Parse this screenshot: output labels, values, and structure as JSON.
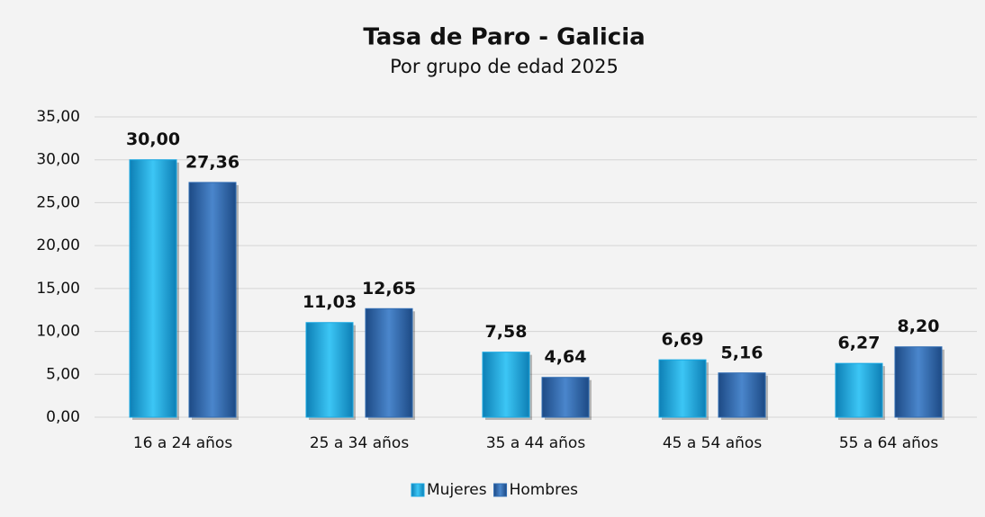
{
  "chart_data": {
    "type": "bar",
    "title": "Tasa de Paro - Galicia",
    "subtitle": "Por grupo de edad 2025",
    "categories": [
      "16 a 24 años",
      "25 a 34 años",
      "35 a 44 años",
      "45 a 54 años",
      "55 a 64 años"
    ],
    "series": [
      {
        "name": "Mujeres",
        "color": "#19a9e3",
        "values": [
          30,
          11.03,
          7.58,
          6.69,
          6.27
        ],
        "value_labels": [
          "30,00",
          "11,03",
          "7,58",
          "6,69",
          "6,27"
        ]
      },
      {
        "name": "Hombres",
        "color": "#2f6cb3",
        "values": [
          27.36,
          12.65,
          4.64,
          5.16,
          8.2
        ],
        "value_labels": [
          "27,36",
          "12,65",
          "4,64",
          "5,16",
          "8,20"
        ]
      }
    ],
    "ylim": [
      0,
      35
    ],
    "yticks": [
      {
        "value": 0,
        "label": "0,00"
      },
      {
        "value": 5,
        "label": "5,00"
      },
      {
        "value": 10,
        "label": "10,00"
      },
      {
        "value": 15,
        "label": "15,00"
      },
      {
        "value": 20,
        "label": "20,00"
      },
      {
        "value": 25,
        "label": "25,00"
      },
      {
        "value": 30,
        "label": "30,00"
      },
      {
        "value": 35,
        "label": "35,00"
      }
    ],
    "grid": true,
    "legend": "bottom"
  }
}
